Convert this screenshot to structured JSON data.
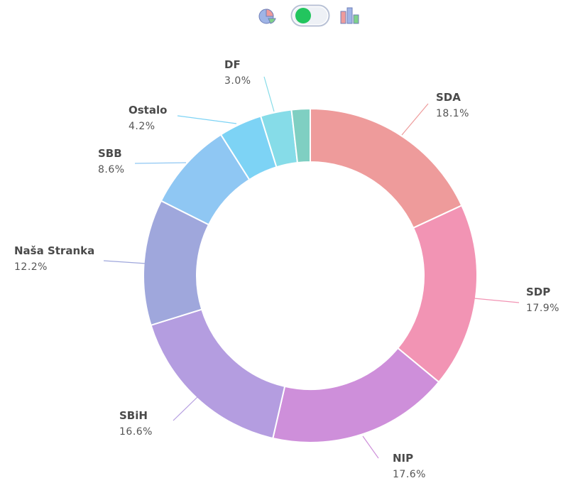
{
  "toolbar": {
    "pie_icon": "pie-chart-icon",
    "toggle": "toggle-switch",
    "bar_icon": "bar-chart-icon",
    "toggle_color": "#22c55e",
    "toggle_on": true
  },
  "chart_data": {
    "type": "pie",
    "donut": true,
    "categories": [
      "SDA",
      "SDP",
      "NIP",
      "SBiH",
      "Naša Stranka",
      "SBB",
      "Ostalo",
      "DF"
    ],
    "values": [
      18.1,
      17.9,
      17.6,
      16.6,
      12.2,
      8.6,
      4.2,
      3.0
    ],
    "value_labels": [
      "18.1%",
      "17.9%",
      "17.6%",
      "16.6%",
      "12.2%",
      "8.6%",
      "4.2%",
      "3.0%"
    ],
    "colors": [
      "#ee9b9b",
      "#f294b4",
      "#ce8fda",
      "#b49de0",
      "#9fa7dc",
      "#8fc7f3",
      "#7dd3f5",
      "#86dce8"
    ],
    "extra_slice_color": "#7fcfc2",
    "title": ""
  }
}
